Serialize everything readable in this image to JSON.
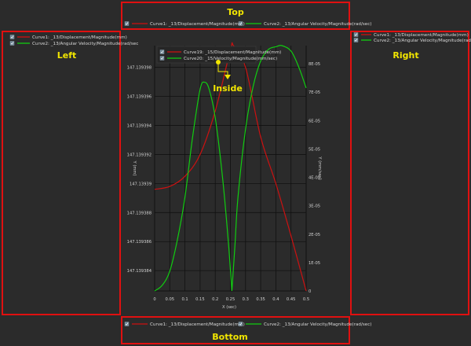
{
  "legend_positions": {
    "top": "Top",
    "left": "Left",
    "right": "Right",
    "bottom": "Bottom",
    "inside": "Inside"
  },
  "outer_legend": {
    "items": [
      {
        "label": "Curve1: _13/Displacement/Magnitude(mm)",
        "color": "#cc1111",
        "checked": true
      },
      {
        "label": "Curve2: _13/Angular Velocity/Magnitude(rad/sec)",
        "color": "#11cc11",
        "checked": true
      }
    ]
  },
  "left_legend": {
    "items": [
      {
        "label": "Curve1: _13/Displacement/Magnitude(mm)",
        "color": "#cc1111",
        "checked": true
      },
      {
        "label": "Curve2: _13/Angular Velocity/Magnitude(rad/sec",
        "color": "#11cc11",
        "checked": true
      }
    ]
  },
  "inside_legend": {
    "items": [
      {
        "label": "Curve19: _15/Displacement/Magnitude(mm)",
        "color": "#cc1111",
        "checked": true
      },
      {
        "label": "Curve20: _15/Velocity/Magnitude(mm/sec)",
        "color": "#11cc11",
        "checked": true
      }
    ]
  },
  "colors": {
    "background": "#2b2b2b",
    "frame": "#e01010",
    "highlight": "#f2e600",
    "grid": "#111111"
  },
  "chart_data": {
    "type": "line",
    "xlabel": "X (sec)",
    "ylabel_left": "Y (mm)",
    "ylabel_right": "Y (mm/sec)",
    "xlim": [
      0,
      0.5
    ],
    "ylim_left": [
      147.1393826,
      147.1393995
    ],
    "ylim_right": [
      0,
      8.64e-05
    ],
    "x_ticks": [
      "0",
      "0.05",
      "0.1",
      "0.15",
      "0.2",
      "0.25",
      "0.3",
      "0.35",
      "0.4",
      "0.45",
      "0.5"
    ],
    "y_ticks_left": [
      "147.139398",
      "147.139396",
      "147.139394",
      "147.139392",
      "147.13939",
      "147.139388",
      "147.139386",
      "147.139384"
    ],
    "y_ticks_right": [
      "8E-05",
      "7E-05",
      "6E-05",
      "5E-05",
      "4E-05",
      "3E-05",
      "2E-05",
      "1E-05",
      "0"
    ],
    "grid": true,
    "series": [
      {
        "name": "Curve1: _13/Displacement/Magnitude(mm)",
        "axis": "left",
        "color": "#cc1111",
        "x": [
          0,
          0.05,
          0.1,
          0.15,
          0.2,
          0.25,
          0.26,
          0.3,
          0.35,
          0.4,
          0.45,
          0.5
        ],
        "y": [
          147.1393896,
          147.1393898,
          147.1393905,
          147.139392,
          147.139395,
          147.1393992,
          147.1393995,
          147.139398,
          147.1393932,
          147.13939,
          147.1393864,
          147.1393826
        ]
      },
      {
        "name": "Curve2: _13/Angular Velocity/Magnitude(rad/sec)",
        "axis": "right",
        "color": "#11cc11",
        "x": [
          0,
          0.025,
          0.05,
          0.075,
          0.1,
          0.125,
          0.15,
          0.165,
          0.18,
          0.2,
          0.225,
          0.245,
          0.255,
          0.265,
          0.275,
          0.3,
          0.325,
          0.35,
          0.375,
          0.4,
          0.42,
          0.45,
          0.475,
          0.5
        ],
        "y": [
          0,
          2e-06,
          7e-06,
          1.8e-05,
          3.3e-05,
          5.4e-05,
          7.1e-05,
          7.35e-05,
          7.1e-05,
          6.1e-05,
          3.9e-05,
          1.5e-05,
          0,
          1.6e-05,
          3.3e-05,
          5.7e-05,
          7.2e-05,
          8.1e-05,
          8.5e-05,
          8.6e-05,
          8.65e-05,
          8.45e-05,
          7.9e-05,
          7.15e-05
        ]
      }
    ]
  }
}
